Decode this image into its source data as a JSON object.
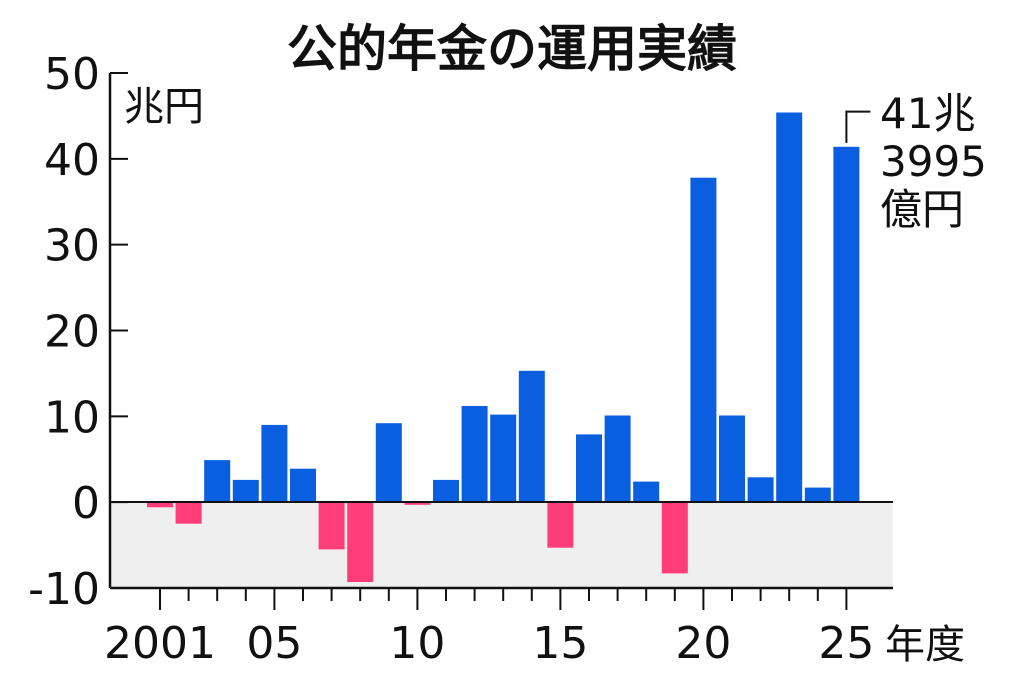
{
  "chart_data": {
    "type": "bar",
    "title": "公的年金の運用実績",
    "ylabel": "兆円",
    "xlabel": "年度",
    "ylim": [
      -10,
      50
    ],
    "yticks": [
      "50",
      "40",
      "30",
      "20",
      "10",
      "0",
      "-10"
    ],
    "ytick_values": [
      50,
      40,
      30,
      20,
      10,
      0,
      -10
    ],
    "xticks": [
      {
        "year": 2001,
        "label": "2001"
      },
      {
        "year": 2005,
        "label": "05"
      },
      {
        "year": 2010,
        "label": "10"
      },
      {
        "year": 2015,
        "label": "15"
      },
      {
        "year": 2020,
        "label": "20"
      },
      {
        "year": 2025,
        "label": "25"
      }
    ],
    "years": [
      2001,
      2002,
      2003,
      2004,
      2005,
      2006,
      2007,
      2008,
      2009,
      2010,
      2011,
      2012,
      2013,
      2014,
      2015,
      2016,
      2017,
      2018,
      2019,
      2020,
      2021,
      2022,
      2023,
      2024,
      2025
    ],
    "values": [
      -0.6,
      -2.5,
      4.9,
      2.6,
      9.0,
      3.9,
      -5.5,
      -9.3,
      9.2,
      -0.3,
      2.6,
      11.2,
      10.2,
      15.3,
      -5.3,
      7.9,
      10.1,
      2.4,
      -8.3,
      37.8,
      10.1,
      2.9,
      45.4,
      1.7,
      41.4
    ],
    "positive_color": "#0a5fe0",
    "negative_color": "#ff3d79",
    "negative_region_color": "#efefef",
    "annotation": {
      "year": 2025,
      "lines": [
        "41兆",
        "3995",
        "億円"
      ]
    }
  }
}
